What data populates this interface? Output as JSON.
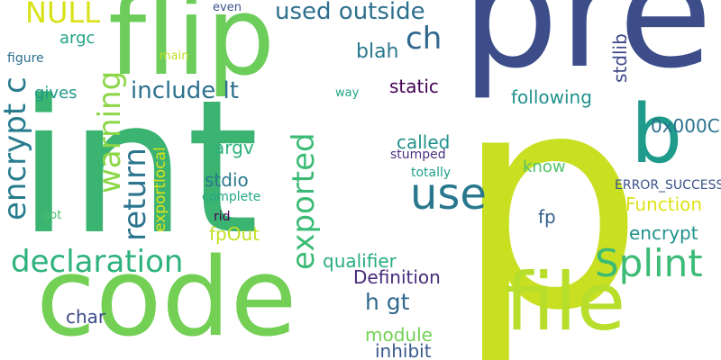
{
  "words": [
    {
      "text": "int",
      "color": "#3bb371"
    },
    {
      "text": "p",
      "color": "#c8df22"
    },
    {
      "text": "pre",
      "color": "#3d4d8a"
    },
    {
      "text": "code",
      "color": "#73d055"
    },
    {
      "text": "flip",
      "color": "#6ccd5a"
    },
    {
      "text": "file",
      "color": "#b6de2b"
    },
    {
      "text": "b",
      "color": "#1e9b8a"
    },
    {
      "text": "use",
      "color": "#2a788e"
    },
    {
      "text": "Splint",
      "color": "#3bbb75"
    },
    {
      "text": "declaration",
      "color": "#2db27d"
    },
    {
      "text": "exported",
      "color": "#3bbb75"
    },
    {
      "text": "encrypt c",
      "color": "#287c8e"
    },
    {
      "text": "return",
      "color": "#2b748e"
    },
    {
      "text": "warning",
      "color": "#8bd646"
    },
    {
      "text": "NULL",
      "color": "#d8e219"
    },
    {
      "text": "include lt",
      "color": "#2d708e"
    },
    {
      "text": "used outside",
      "color": "#2d708e"
    },
    {
      "text": "ch",
      "color": "#31688e"
    },
    {
      "text": "blah",
      "color": "#2a788e"
    },
    {
      "text": "argc",
      "color": "#20a386"
    },
    {
      "text": "gives",
      "color": "#1f9a8a"
    },
    {
      "text": "static",
      "color": "#440154"
    },
    {
      "text": "stdlib",
      "color": "#3e4989"
    },
    {
      "text": "following",
      "color": "#21918c"
    },
    {
      "text": "0x000C",
      "color": "#2c728e"
    },
    {
      "text": "called",
      "color": "#21918c"
    },
    {
      "text": "know",
      "color": "#52c569"
    },
    {
      "text": "argv",
      "color": "#2db27d"
    },
    {
      "text": "stdio",
      "color": "#2a788e"
    },
    {
      "text": "stumped",
      "color": "#46327e"
    },
    {
      "text": "totally",
      "color": "#1fa187"
    },
    {
      "text": "ERROR_SUCCESS",
      "color": "#3b528b"
    },
    {
      "text": "Function",
      "color": "#dde318"
    },
    {
      "text": "encrypt",
      "color": "#20928c"
    },
    {
      "text": "fp",
      "color": "#355f8d"
    },
    {
      "text": "exportlocal",
      "color": "#dde318"
    },
    {
      "text": "complete",
      "color": "#22a785"
    },
    {
      "text": "rid",
      "color": "#440154"
    },
    {
      "text": "got",
      "color": "#4ac16d"
    },
    {
      "text": "fpOut",
      "color": "#c2df23"
    },
    {
      "text": "qualifier",
      "color": "#27ad81"
    },
    {
      "text": "Definition",
      "color": "#472c7a"
    },
    {
      "text": "h gt",
      "color": "#31688e"
    },
    {
      "text": "char",
      "color": "#3e4a89"
    },
    {
      "text": "module",
      "color": "#73d055"
    },
    {
      "text": "inhibit",
      "color": "#38598c"
    },
    {
      "text": "figure",
      "color": "#2d708e"
    },
    {
      "text": "main",
      "color": "#c0df25"
    },
    {
      "text": "even",
      "color": "#3b528b"
    },
    {
      "text": "way",
      "color": "#21a585"
    }
  ]
}
